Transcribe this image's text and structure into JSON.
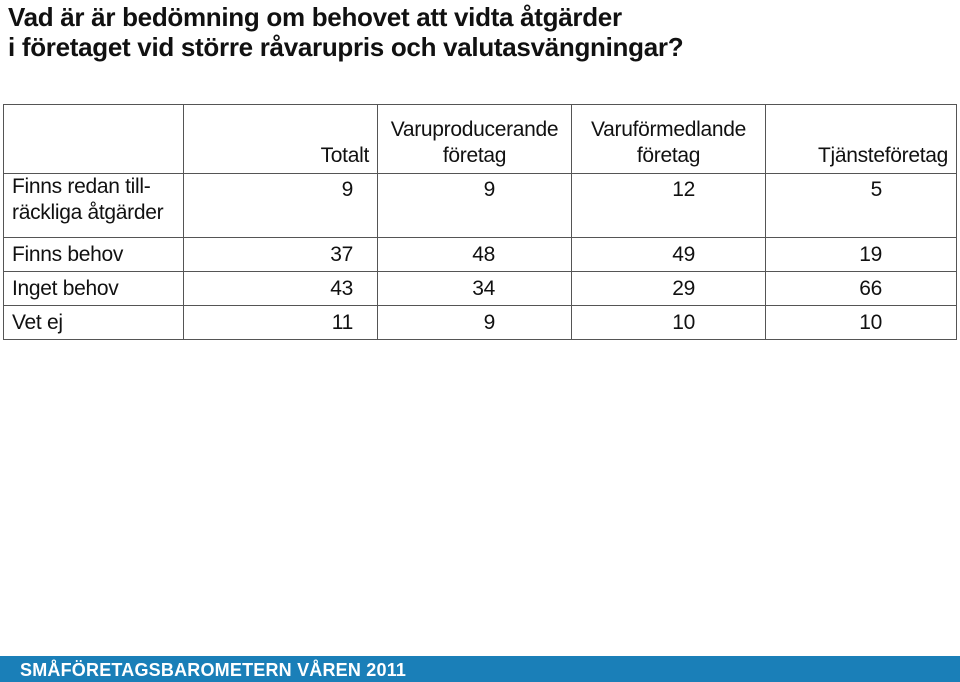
{
  "title": {
    "line1": "Vad är är bedömning om behovet att vidta åtgärder",
    "line2": "i företaget vid större råvarupris och valutasvängningar?"
  },
  "table": {
    "headers": {
      "label": "",
      "totalt": "Totalt",
      "varuproducerande_line1": "Varuproducerande",
      "varuproducerande_line2": "företag",
      "varuformedlande_line1": "Varuförmedlande",
      "varuformedlande_line2": "företag",
      "tjansteforetag": "Tjänsteföretag"
    },
    "rows": [
      {
        "label_line1": "Finns redan till-",
        "label_line2": "räckliga åtgärder",
        "totalt": "9",
        "varuproducerande": "9",
        "varuformedlande": "12",
        "tjansteforetag": "5"
      },
      {
        "label": "Finns behov",
        "totalt": "37",
        "varuproducerande": "48",
        "varuformedlande": "49",
        "tjansteforetag": "19"
      },
      {
        "label": "Inget behov",
        "totalt": "43",
        "varuproducerande": "34",
        "varuformedlande": "29",
        "tjansteforetag": "66"
      },
      {
        "label": "Vet ej",
        "totalt": "11",
        "varuproducerande": "9",
        "varuformedlande": "10",
        "tjansteforetag": "10"
      }
    ]
  },
  "footer": {
    "text": "SMÅFÖRETAGSBAROMETERN VÅREN 2011",
    "background_color": "#1a7fb8"
  }
}
